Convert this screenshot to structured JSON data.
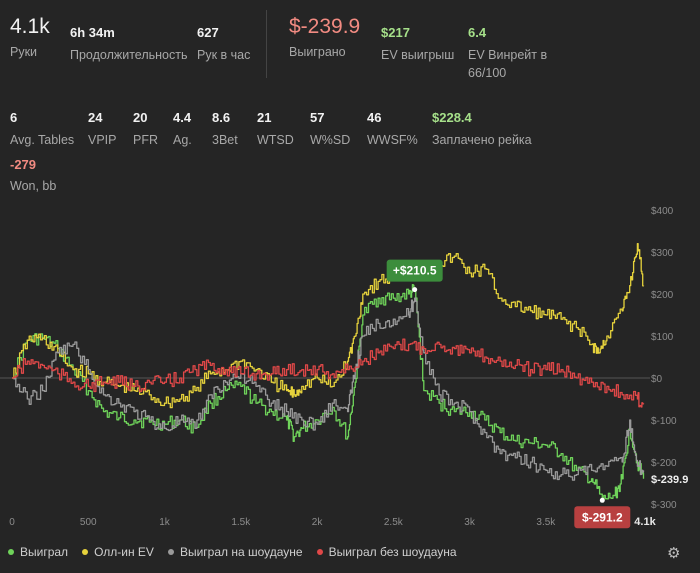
{
  "stats_top": [
    {
      "value": "4.1k",
      "label": "Руки",
      "x": 10,
      "big": true,
      "color": ""
    },
    {
      "value": "6h 34m",
      "label": "Продолжительность",
      "x": 70,
      "big": false,
      "color": ""
    },
    {
      "value": "627",
      "label": "Рук в час",
      "x": 197,
      "big": false,
      "color": ""
    },
    {
      "value": "$-239.9",
      "label": "Выиграно",
      "x": 289,
      "big": true,
      "color": "red"
    },
    {
      "value": "$217",
      "label": "EV выигрыш",
      "x": 381,
      "big": false,
      "color": "green"
    },
    {
      "value": "6.4",
      "label": "EV Винрейт в\n66/100",
      "x": 468,
      "big": false,
      "color": "green"
    }
  ],
  "stats_row2": [
    {
      "value": "6",
      "label": "Avg. Tables",
      "x": 10,
      "color": ""
    },
    {
      "value": "24",
      "label": "VPIP",
      "x": 88,
      "color": ""
    },
    {
      "value": "20",
      "label": "PFR",
      "x": 133,
      "color": ""
    },
    {
      "value": "4.4",
      "label": "Ag.",
      "x": 173,
      "color": ""
    },
    {
      "value": "8.6",
      "label": "3Bet",
      "x": 212,
      "color": ""
    },
    {
      "value": "21",
      "label": "WTSD",
      "x": 257,
      "color": ""
    },
    {
      "value": "57",
      "label": "W%SD",
      "x": 310,
      "color": ""
    },
    {
      "value": "46",
      "label": "WWSF%",
      "x": 367,
      "color": ""
    },
    {
      "value": "$228.4",
      "label": "Заплачено рейка",
      "x": 432,
      "color": "green"
    }
  ],
  "stats_row3": [
    {
      "value": "-279",
      "label": "Won, bb",
      "x": 10,
      "color": "red"
    }
  ],
  "chart_data": {
    "type": "line",
    "xlim": [
      0,
      4150
    ],
    "ylim": [
      -300,
      400
    ],
    "x_ticks": [
      {
        "v": 0,
        "t": "0"
      },
      {
        "v": 500,
        "t": "500"
      },
      {
        "v": 1000,
        "t": "1k"
      },
      {
        "v": 1500,
        "t": "1.5k"
      },
      {
        "v": 2000,
        "t": "2k"
      },
      {
        "v": 2500,
        "t": "2.5k"
      },
      {
        "v": 3000,
        "t": "3k"
      },
      {
        "v": 3500,
        "t": "3.5k"
      }
    ],
    "x_end_label": "4.1k",
    "y_ticks": [
      {
        "v": 400,
        "t": "$400"
      },
      {
        "v": 300,
        "t": "$300"
      },
      {
        "v": 200,
        "t": "$200"
      },
      {
        "v": 100,
        "t": "$100"
      },
      {
        "v": 0,
        "t": "$0"
      },
      {
        "v": -100,
        "t": "$-100"
      },
      {
        "v": -200,
        "t": "$-200"
      },
      {
        "v": -300,
        "t": "$-300"
      }
    ],
    "annotations": [
      {
        "text": "+$210.5",
        "x": 2640,
        "y": 210.5,
        "color": "#3c8d3c",
        "pos": "above"
      },
      {
        "text": "$-291.2",
        "x": 3870,
        "y": -291.2,
        "color": "#b84040",
        "pos": "below"
      },
      {
        "text": "$-239.9",
        "x": 4140,
        "y": -239.9,
        "color": "",
        "pos": "end"
      }
    ],
    "series": [
      {
        "name": "Выиграл",
        "color": "#6fd35a",
        "x": [
          0,
          100,
          200,
          300,
          400,
          500,
          600,
          700,
          800,
          900,
          1000,
          1100,
          1200,
          1300,
          1400,
          1500,
          1600,
          1700,
          1800,
          1850,
          1900,
          2000,
          2100,
          2200,
          2250,
          2300,
          2400,
          2500,
          2600,
          2640,
          2700,
          2800,
          2900,
          3000,
          3100,
          3200,
          3300,
          3400,
          3500,
          3600,
          3700,
          3800,
          3870,
          3950,
          4000,
          4050,
          4100,
          4140
        ],
        "y": [
          0,
          90,
          95,
          70,
          20,
          -30,
          -80,
          -95,
          -100,
          -105,
          -110,
          -100,
          -120,
          -60,
          -30,
          -20,
          -60,
          -80,
          -100,
          -140,
          -120,
          -100,
          -70,
          -140,
          -10,
          150,
          190,
          190,
          200,
          210.5,
          -30,
          -60,
          -80,
          -80,
          -100,
          -130,
          -150,
          -155,
          -160,
          -180,
          -220,
          -240,
          -291.2,
          -280,
          -240,
          -120,
          -200,
          -239.9
        ]
      },
      {
        "name": "Олл-ин EV",
        "color": "#e6d23c",
        "x": [
          0,
          100,
          200,
          300,
          400,
          500,
          600,
          700,
          800,
          900,
          1000,
          1100,
          1200,
          1300,
          1400,
          1500,
          1600,
          1700,
          1800,
          1850,
          1900,
          2000,
          2100,
          2200,
          2250,
          2300,
          2400,
          2500,
          2600,
          2700,
          2800,
          2900,
          3000,
          3100,
          3200,
          3300,
          3400,
          3500,
          3600,
          3700,
          3800,
          3850,
          3900,
          4000,
          4050,
          4100,
          4140
        ],
        "y": [
          0,
          90,
          95,
          60,
          20,
          10,
          -10,
          -20,
          -30,
          -40,
          -60,
          -50,
          -30,
          10,
          20,
          40,
          20,
          -10,
          -30,
          -40,
          -20,
          0,
          -20,
          40,
          100,
          200,
          230,
          240,
          250,
          260,
          270,
          290,
          250,
          260,
          190,
          170,
          160,
          150,
          140,
          120,
          80,
          60,
          100,
          160,
          220,
          320,
          220
        ]
      },
      {
        "name": "Выиграл на шоудауне",
        "color": "#9a9a9a",
        "x": [
          0,
          100,
          200,
          300,
          400,
          500,
          600,
          700,
          800,
          900,
          1000,
          1100,
          1200,
          1300,
          1400,
          1500,
          1600,
          1700,
          1800,
          1900,
          2000,
          2100,
          2200,
          2250,
          2300,
          2400,
          2500,
          2600,
          2640,
          2700,
          2800,
          2900,
          3000,
          3100,
          3200,
          3300,
          3400,
          3500,
          3600,
          3700,
          3800,
          3900,
          4000,
          4050,
          4100,
          4140
        ],
        "y": [
          0,
          -50,
          -30,
          60,
          80,
          20,
          -40,
          -60,
          -80,
          -100,
          -120,
          -100,
          -120,
          -40,
          -10,
          10,
          -20,
          -60,
          -80,
          -100,
          -110,
          -60,
          -80,
          20,
          100,
          130,
          140,
          150,
          190,
          60,
          -40,
          -60,
          -80,
          -130,
          -180,
          -190,
          -200,
          -220,
          -230,
          -230,
          -220,
          -210,
          -200,
          -100,
          -210,
          -220
        ]
      },
      {
        "name": "Выиграл без шоудауна",
        "color": "#e04848",
        "x": [
          0,
          100,
          200,
          300,
          400,
          500,
          600,
          700,
          800,
          900,
          1000,
          1100,
          1200,
          1300,
          1400,
          1500,
          1600,
          1700,
          1800,
          1900,
          2000,
          2100,
          2200,
          2300,
          2400,
          2500,
          2600,
          2700,
          2800,
          2900,
          3000,
          3100,
          3200,
          3300,
          3400,
          3500,
          3600,
          3700,
          3800,
          3900,
          4000,
          4100,
          4140
        ],
        "y": [
          0,
          40,
          30,
          10,
          -10,
          -20,
          -10,
          -10,
          -20,
          -10,
          -10,
          0,
          20,
          30,
          20,
          10,
          10,
          10,
          20,
          20,
          20,
          10,
          20,
          40,
          60,
          70,
          80,
          70,
          80,
          70,
          60,
          50,
          40,
          30,
          20,
          20,
          20,
          0,
          -10,
          -20,
          -40,
          -50,
          -60
        ]
      }
    ]
  },
  "legend": [
    {
      "label": "Выиграл",
      "color": "#6fd35a"
    },
    {
      "label": "Олл-ин EV",
      "color": "#e6d23c"
    },
    {
      "label": "Выиграл на шоудауне",
      "color": "#9a9a9a"
    },
    {
      "label": "Выиграл без шоудауна",
      "color": "#e04848"
    }
  ],
  "icons": {
    "settings": "gear-icon"
  }
}
